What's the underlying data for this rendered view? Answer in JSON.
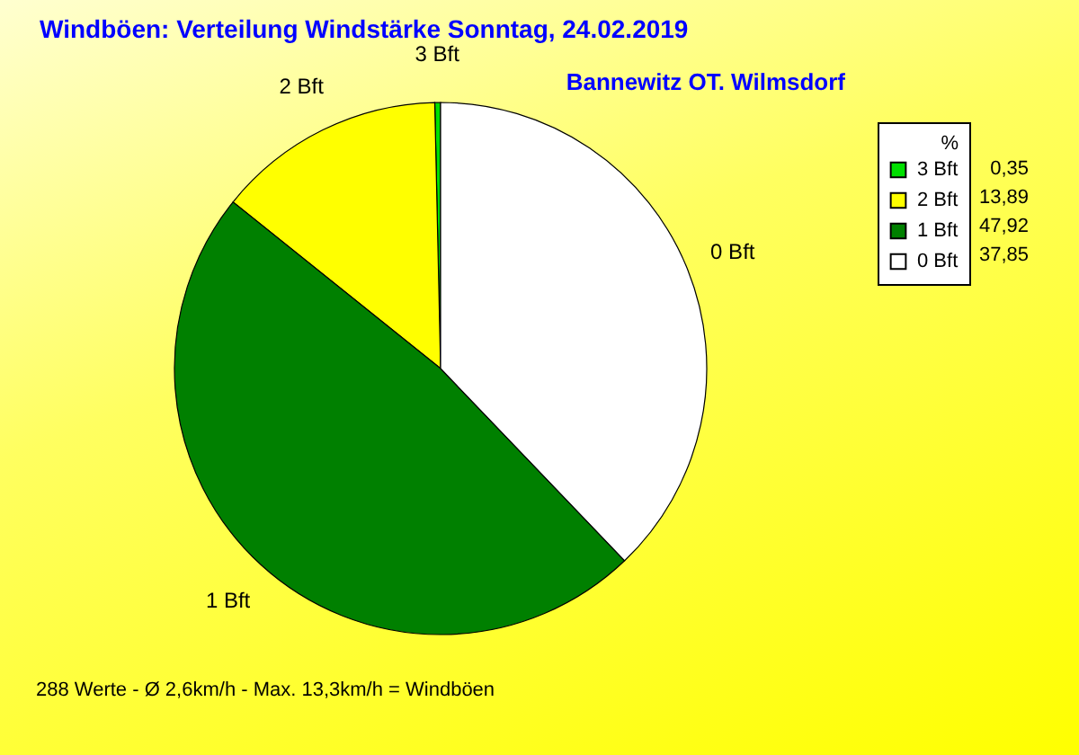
{
  "chart_data": {
    "type": "pie",
    "title": "Windböen: Verteilung Windstärke  Sonntag, 24.02.2019",
    "subtitle": "Bannewitz OT. Wilmsdorf",
    "legend_title": "%",
    "legend": "top right",
    "categories": [
      "3 Bft",
      "2 Bft",
      "1 Bft",
      "0 Bft"
    ],
    "values": [
      0.35,
      13.89,
      47.92,
      37.85
    ],
    "value_labels": [
      "0,35",
      "13,89",
      "47,92",
      "37,85"
    ],
    "colors": [
      "#00e000",
      "#ffff00",
      "#008000",
      "#ffffff"
    ],
    "annotations": [
      "288 Werte   -   Ø 2,6km/h  -  Max. 13,3km/h = Windböen"
    ]
  }
}
